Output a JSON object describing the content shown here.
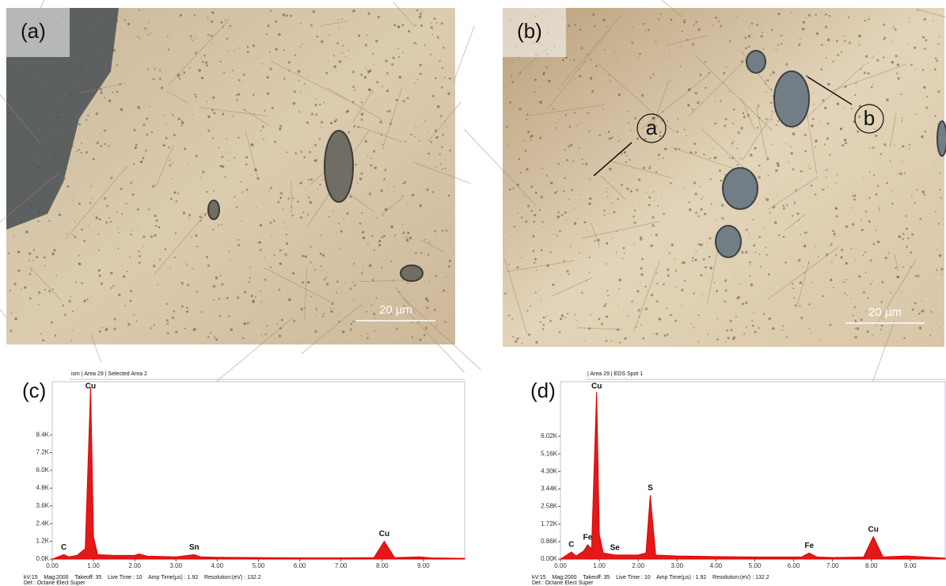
{
  "panels": [
    {
      "label": "(a)",
      "scale_bar": "20 µm"
    },
    {
      "label": "(b)",
      "scale_bar": "20 µm",
      "markers": [
        "a",
        "b"
      ]
    }
  ],
  "chart_data": [
    {
      "type": "spectrum",
      "panel_label": "(c)",
      "header": "ism | Area 29 | Selected Area 2",
      "color": "#e00000",
      "x": [
        0,
        0.28,
        0.4,
        0.6,
        0.8,
        0.93,
        1.0,
        1.1,
        1.5,
        2.0,
        2.1,
        2.3,
        3.0,
        3.44,
        3.6,
        4.0,
        5.0,
        6.0,
        7.0,
        7.8,
        8.05,
        8.3,
        8.9,
        9.2,
        10.0
      ],
      "values": [
        0,
        300,
        150,
        250,
        700,
        11600,
        1500,
        300,
        250,
        250,
        350,
        200,
        150,
        300,
        150,
        120,
        100,
        80,
        80,
        100,
        1200,
        100,
        150,
        80,
        50
      ],
      "xlim": [
        0,
        10
      ],
      "xticks": [
        {
          "value": 0,
          "label": "0.00"
        },
        {
          "value": 1,
          "label": "1.00"
        },
        {
          "value": 2,
          "label": "2.00"
        },
        {
          "value": 3,
          "label": "3.00"
        },
        {
          "value": 4,
          "label": "4.00"
        },
        {
          "value": 5,
          "label": "5.00"
        },
        {
          "value": 6,
          "label": "6.00"
        },
        {
          "value": 7,
          "label": "7.00"
        },
        {
          "value": 8,
          "label": "8.00"
        },
        {
          "value": 9,
          "label": "9.00"
        }
      ],
      "ylim": [
        0,
        12000
      ],
      "yticks": [
        {
          "value": 0,
          "label": "0.0K"
        },
        {
          "value": 1200,
          "label": "1.2K"
        },
        {
          "value": 2400,
          "label": "2.4K"
        },
        {
          "value": 3600,
          "label": "3.6K"
        },
        {
          "value": 4800,
          "label": "4.8K"
        },
        {
          "value": 6000,
          "label": "6.0K"
        },
        {
          "value": 7200,
          "label": "7.2K"
        },
        {
          "value": 8400,
          "label": "8.4K"
        }
      ],
      "peaks": [
        {
          "label": "C",
          "x": 0.28
        },
        {
          "label": "Cu",
          "x": 0.93
        },
        {
          "label": "Sn",
          "x": 3.44
        },
        {
          "label": "Cu",
          "x": 8.05
        }
      ],
      "footer": [
        "kV:15    Mag:2000    Takeoff: 35    Live Time : 10    Amp Time(µs) : 1.92    Resolution:(eV) : 132.2",
        "Det : Octane Elect Super"
      ]
    },
    {
      "type": "spectrum",
      "panel_label": "(d)",
      "header": "| Area 29 | EDS Spot 1",
      "color": "#e00000",
      "x": [
        0,
        0.28,
        0.4,
        0.6,
        0.7,
        0.8,
        0.93,
        1.0,
        1.1,
        1.4,
        2.0,
        2.2,
        2.31,
        2.45,
        3.0,
        4.0,
        5.0,
        6.2,
        6.4,
        6.6,
        7.0,
        7.8,
        8.05,
        8.3,
        8.9,
        9.9
      ],
      "values": [
        0,
        350,
        150,
        400,
        700,
        500,
        8200,
        1200,
        300,
        200,
        200,
        300,
        3130,
        200,
        150,
        120,
        100,
        100,
        300,
        100,
        80,
        100,
        1100,
        100,
        150,
        50
      ],
      "xlim": [
        0,
        9.9
      ],
      "xticks": [
        {
          "value": 0,
          "label": "0.00"
        },
        {
          "value": 1,
          "label": "1.00"
        },
        {
          "value": 2,
          "label": "2.00"
        },
        {
          "value": 3,
          "label": "3.00"
        },
        {
          "value": 4,
          "label": "4.00"
        },
        {
          "value": 5,
          "label": "5.00"
        },
        {
          "value": 6,
          "label": "6.00"
        },
        {
          "value": 7,
          "label": "7.00"
        },
        {
          "value": 8,
          "label": "8.00"
        },
        {
          "value": 9,
          "label": "9.00"
        }
      ],
      "ylim": [
        0,
        8700
      ],
      "yticks": [
        {
          "value": 0,
          "label": "0.00K"
        },
        {
          "value": 860,
          "label": "0.86K"
        },
        {
          "value": 1720,
          "label": "1.72K"
        },
        {
          "value": 2580,
          "label": "2.58K"
        },
        {
          "value": 3440,
          "label": "3.44K"
        },
        {
          "value": 4300,
          "label": "4.30K"
        },
        {
          "value": 5160,
          "label": "5.16K"
        },
        {
          "value": 6020,
          "label": "6.02K"
        }
      ],
      "peaks": [
        {
          "label": "C",
          "x": 0.28
        },
        {
          "label": "Fe",
          "x": 0.7
        },
        {
          "label": "Cu",
          "x": 0.93
        },
        {
          "label": "Se",
          "x": 1.4
        },
        {
          "label": "S",
          "x": 2.31
        },
        {
          "label": "Fe",
          "x": 6.4
        },
        {
          "label": "Cu",
          "x": 8.05
        }
      ],
      "footer": [
        "kV:15    Mag:2000    Takeoff: 35    Live Time : 10    Amp Time(µs) : 1.92    Resolution:(eV) : 132.2",
        "Det : Octane Elect Super"
      ]
    }
  ]
}
